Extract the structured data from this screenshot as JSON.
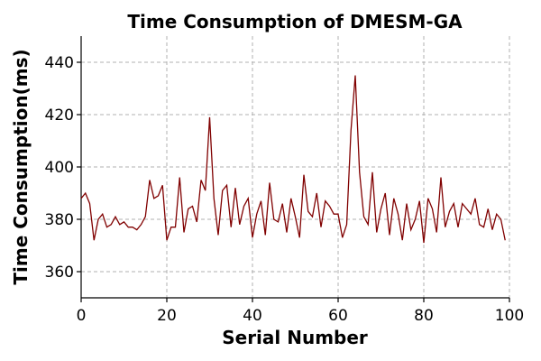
{
  "chart_data": {
    "type": "line",
    "title": "Time Consumption of DMESM-GA",
    "xlabel": "Serial Number",
    "ylabel": "Time Consumption(ms)",
    "xlim": [
      0,
      100
    ],
    "ylim": [
      350,
      450
    ],
    "xticks": [
      0,
      20,
      40,
      60,
      80,
      100
    ],
    "yticks": [
      360,
      380,
      400,
      420,
      440
    ],
    "grid": true,
    "line_color": "#800000",
    "series": [
      {
        "x": [
          0,
          1,
          2,
          3,
          4,
          5,
          6,
          7,
          8,
          9,
          10,
          11,
          12,
          13,
          14,
          15,
          16,
          17,
          18,
          19,
          20,
          21,
          22,
          23,
          24,
          25,
          26,
          27,
          28,
          29,
          30,
          31,
          32,
          33,
          34,
          35,
          36,
          37,
          38,
          39,
          40,
          41,
          42,
          43,
          44,
          45,
          46,
          47,
          48,
          49,
          50,
          51,
          52,
          53,
          54,
          55,
          56,
          57,
          58,
          59,
          60,
          61,
          62,
          63,
          64,
          65,
          66,
          67,
          68,
          69,
          70,
          71,
          72,
          73,
          74,
          75,
          76,
          77,
          78,
          79,
          80,
          81,
          82,
          83,
          84,
          85,
          86,
          87,
          88,
          89,
          90,
          91,
          92,
          93,
          94,
          95,
          96,
          97,
          98,
          99
        ],
        "values": [
          388,
          390,
          386,
          372,
          380,
          382,
          377,
          378,
          381,
          378,
          379,
          377,
          377,
          376,
          378,
          381,
          395,
          388,
          389,
          393,
          372,
          377,
          377,
          396,
          375,
          384,
          385,
          379,
          395,
          391,
          419,
          388,
          374,
          391,
          393,
          377,
          392,
          378,
          385,
          388,
          373,
          382,
          387,
          374,
          394,
          380,
          379,
          386,
          375,
          388,
          381,
          373,
          397,
          383,
          381,
          390,
          377,
          387,
          385,
          382,
          382,
          373,
          378,
          414,
          435,
          398,
          381,
          378,
          398,
          375,
          384,
          390,
          374,
          388,
          382,
          372,
          386,
          376,
          380,
          387,
          371,
          388,
          384,
          375,
          396,
          377,
          383,
          386,
          377,
          386,
          384,
          382,
          388,
          378,
          377,
          384,
          376,
          382,
          380,
          372
        ]
      }
    ]
  }
}
